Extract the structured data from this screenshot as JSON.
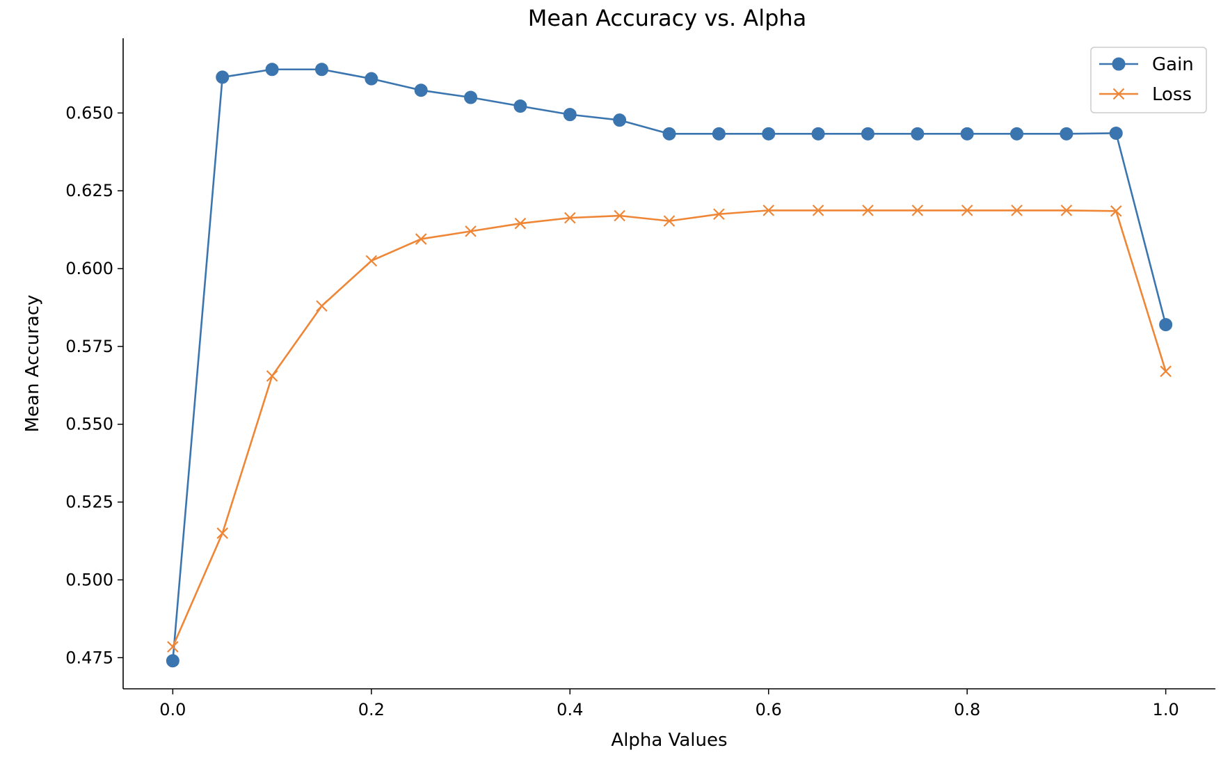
{
  "chart_data": {
    "type": "line",
    "title": "Mean Accuracy vs. Alpha",
    "xlabel": "Alpha Values",
    "ylabel": "Mean Accuracy",
    "xlim": [
      -0.05,
      1.05
    ],
    "ylim": [
      0.465,
      0.674
    ],
    "xticks": [
      0.0,
      0.2,
      0.4,
      0.6,
      0.8,
      1.0
    ],
    "xtick_labels": [
      "0.0",
      "0.2",
      "0.4",
      "0.6",
      "0.8",
      "1.0"
    ],
    "yticks": [
      0.475,
      0.5,
      0.525,
      0.55,
      0.575,
      0.6,
      0.625,
      0.65
    ],
    "ytick_labels": [
      "0.475",
      "0.500",
      "0.525",
      "0.550",
      "0.575",
      "0.600",
      "0.625",
      "0.650"
    ],
    "grid": false,
    "legend_position": "top-right",
    "x": [
      0.0,
      0.05,
      0.1,
      0.15,
      0.2,
      0.25,
      0.3,
      0.35,
      0.4,
      0.45,
      0.5,
      0.55,
      0.6,
      0.65,
      0.7,
      0.75,
      0.8,
      0.85,
      0.9,
      0.95,
      1.0
    ],
    "series": [
      {
        "name": "Gain",
        "color": "#3b75af",
        "marker": "circle",
        "values": [
          0.474,
          0.6615,
          0.664,
          0.664,
          0.661,
          0.6573,
          0.655,
          0.6522,
          0.6495,
          0.6477,
          0.6433,
          0.6433,
          0.6433,
          0.6433,
          0.6433,
          0.6433,
          0.6433,
          0.6433,
          0.6433,
          0.6435,
          0.582
        ]
      },
      {
        "name": "Loss",
        "color": "#ef8636",
        "marker": "x",
        "values": [
          0.4785,
          0.515,
          0.5655,
          0.588,
          0.6025,
          0.6095,
          0.612,
          0.6145,
          0.6163,
          0.617,
          0.6153,
          0.6175,
          0.6187,
          0.6187,
          0.6187,
          0.6187,
          0.6187,
          0.6187,
          0.6187,
          0.6185,
          0.567
        ]
      }
    ]
  }
}
